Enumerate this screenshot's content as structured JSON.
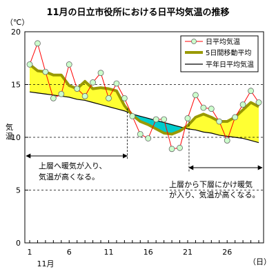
{
  "chart_data": {
    "type": "line",
    "title": "11月の日立市役所における日平均気温の推移",
    "y_unit": "（℃）",
    "ylabel": "気温",
    "xlabel": "",
    "x_month_label": "11月",
    "x_unit": "（日）",
    "ylim": [
      0,
      20
    ],
    "xlim": [
      1,
      30
    ],
    "y_ticks": [
      0,
      5,
      10,
      15,
      20
    ],
    "x_ticks": [
      1,
      6,
      11,
      16,
      21,
      26
    ],
    "grid": "horizontal-dashed",
    "legend_position": "top-right",
    "x": [
      1,
      2,
      3,
      4,
      5,
      6,
      7,
      8,
      9,
      10,
      11,
      12,
      13,
      14,
      15,
      16,
      17,
      18,
      19,
      20,
      21,
      22,
      23,
      24,
      25,
      26,
      27,
      28,
      29,
      30
    ],
    "series": [
      {
        "name": "日平均気温",
        "color": "#ff0000",
        "marker_fill": "#ccffcc",
        "values": [
          16.9,
          18.9,
          16.2,
          13.7,
          14.1,
          16.9,
          14.6,
          13.9,
          15.2,
          16.1,
          13.7,
          15.1,
          13.7,
          12.0,
          10.3,
          9.9,
          11.7,
          11.7,
          8.9,
          9.0,
          11.8,
          14.0,
          12.8,
          12.7,
          11.5,
          9.7,
          11.9,
          13.1,
          14.4,
          13.3
        ]
      },
      {
        "name": "5日間移動平均",
        "color": "#999900",
        "values": [
          16.9,
          16.3,
          16.2,
          15.9,
          15.9,
          14.9,
          14.6,
          15.3,
          14.6,
          14.7,
          14.6,
          14.4,
          13.0,
          12.1,
          11.5,
          11.2,
          10.8,
          10.4,
          10.3,
          10.6,
          11.1,
          11.9,
          12.2,
          11.9,
          11.5,
          11.5,
          11.9,
          12.6,
          13.3,
          12.9
        ]
      },
      {
        "name": "平年日平均気温",
        "color": "#000000",
        "values": [
          14.3,
          14.2,
          14.1,
          14.0,
          13.9,
          13.8,
          13.6,
          13.5,
          13.3,
          13.1,
          12.9,
          12.7,
          12.5,
          12.2,
          12.0,
          11.8,
          11.6,
          11.4,
          11.2,
          11.0,
          10.8,
          10.7,
          10.5,
          10.4,
          10.2,
          10.1,
          10.0,
          9.9,
          9.7,
          9.5
        ]
      }
    ],
    "fill_colors": {
      "above_normal": "#ffff33",
      "below_normal": "#00cccc"
    },
    "annotations": [
      {
        "text_lines": [
          "上層へ暖気が入り、",
          "気温が高くなる。"
        ],
        "from_x": 1,
        "to_x": 13
      },
      {
        "text_lines": [
          "上層から下層にかけ暖気",
          "が入り、気温が高くなる。"
        ],
        "from_x": 21,
        "to_x": 30
      }
    ]
  }
}
